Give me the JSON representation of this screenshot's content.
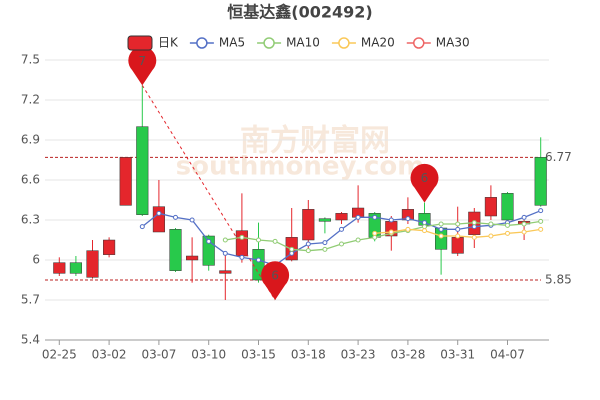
{
  "chart_data": {
    "type": "candlestick",
    "title": "恒基达鑫(002492)",
    "categories": [
      "02-25",
      null,
      null,
      "03-02",
      null,
      null,
      "03-07",
      null,
      null,
      "03-10",
      null,
      null,
      "03-15",
      null,
      null,
      "03-18",
      null,
      null,
      "03-23",
      null,
      null,
      "03-28",
      null,
      null,
      "03-31",
      null,
      null,
      "04-07",
      null,
      null
    ],
    "series": [
      {
        "name": "日K",
        "up_color": "#e4262c",
        "down_color": "#28c94b",
        "open": [
          5.9,
          5.98,
          5.87,
          6.04,
          6.41,
          7.0,
          6.21,
          6.23,
          6.0,
          6.18,
          5.9,
          6.03,
          6.08,
          5.92,
          6.0,
          6.15,
          6.31,
          6.3,
          6.32,
          6.35,
          6.18,
          6.3,
          6.35,
          6.24,
          6.05,
          6.19,
          6.33,
          6.5,
          6.27,
          6.77
        ],
        "high": [
          6.02,
          6.03,
          6.15,
          6.17,
          6.77,
          7.31,
          6.6,
          6.24,
          6.17,
          6.19,
          6.04,
          6.5,
          6.28,
          5.95,
          6.39,
          6.45,
          6.32,
          6.36,
          6.56,
          6.36,
          6.33,
          6.47,
          6.43,
          6.25,
          6.4,
          6.39,
          6.56,
          6.51,
          6.3,
          6.92
        ],
        "low": [
          5.88,
          5.88,
          5.86,
          6.02,
          6.41,
          6.33,
          6.21,
          5.91,
          5.83,
          5.92,
          5.7,
          5.98,
          5.83,
          5.7,
          5.99,
          6.08,
          6.2,
          6.27,
          6.28,
          6.14,
          6.07,
          6.27,
          6.22,
          5.89,
          6.03,
          6.09,
          6.3,
          6.29,
          6.15,
          6.4
        ],
        "close": [
          5.98,
          5.9,
          6.07,
          6.15,
          6.77,
          6.34,
          6.4,
          5.92,
          6.03,
          5.96,
          5.92,
          6.22,
          5.85,
          5.78,
          6.17,
          6.38,
          6.29,
          6.35,
          6.39,
          6.17,
          6.29,
          6.38,
          6.26,
          6.08,
          6.17,
          6.36,
          6.47,
          6.3,
          6.29,
          6.41
        ]
      },
      {
        "name": "MA5",
        "color": "#5470c6",
        "values": [
          null,
          null,
          null,
          null,
          null,
          6.25,
          6.35,
          6.32,
          6.3,
          6.14,
          6.05,
          6.02,
          6.0,
          5.96,
          6.05,
          6.12,
          6.13,
          6.23,
          6.32,
          6.32,
          6.3,
          6.31,
          6.28,
          6.23,
          6.23,
          6.25,
          6.26,
          6.28,
          6.32,
          6.37
        ]
      },
      {
        "name": "MA10",
        "color": "#91cc75",
        "values": [
          null,
          null,
          null,
          null,
          null,
          null,
          null,
          null,
          null,
          null,
          6.15,
          6.17,
          6.15,
          6.14,
          6.08,
          6.07,
          6.08,
          6.12,
          6.15,
          6.17,
          6.2,
          6.22,
          6.25,
          6.27,
          6.27,
          6.28,
          6.27,
          6.26,
          6.27,
          6.29
        ]
      },
      {
        "name": "MA20",
        "color": "#fac858",
        "values": [
          null,
          null,
          null,
          null,
          null,
          null,
          null,
          null,
          null,
          null,
          null,
          null,
          null,
          null,
          null,
          null,
          null,
          null,
          null,
          6.2,
          6.21,
          6.23,
          6.22,
          6.18,
          6.18,
          6.17,
          6.18,
          6.2,
          6.21,
          6.23
        ]
      },
      {
        "name": "MA30",
        "color": "#ee6666",
        "values": [
          null,
          null,
          null,
          null,
          null,
          null,
          null,
          null,
          null,
          null,
          null,
          null,
          null,
          null,
          null,
          null,
          null,
          null,
          null,
          null,
          null,
          null,
          null,
          null,
          null,
          null,
          null,
          null,
          null,
          null
        ]
      }
    ],
    "markers": [
      {
        "label": "7",
        "index": 5,
        "at": "high"
      },
      {
        "label": "6",
        "index": 13,
        "at": "low"
      },
      {
        "label": "6",
        "index": 22,
        "at": "high"
      }
    ],
    "hlines": [
      6.77,
      5.85
    ],
    "watermark": [
      "南方财富网",
      "southmoney.com"
    ],
    "ylim": [
      5.4,
      7.5
    ],
    "yticks": [
      7.5,
      7.2,
      6.9,
      6.6,
      6.3,
      6,
      5.7,
      5.4
    ],
    "grid": true
  }
}
